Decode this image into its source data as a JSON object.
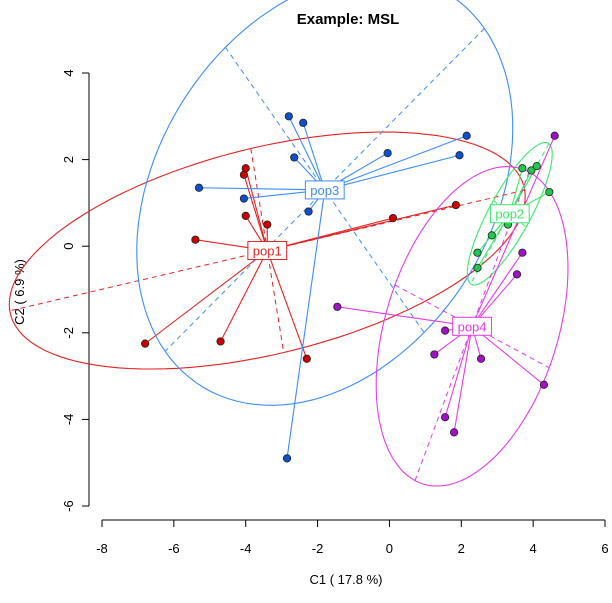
{
  "chart_data": {
    "type": "scatter",
    "title": "Example: MSL",
    "xlabel": "C1 ( 17.8 %)",
    "ylabel": "C2 ( 6.9 %)",
    "xlim": [
      -8,
      6
    ],
    "ylim": [
      -6,
      4
    ],
    "xticks": [
      "-8",
      "-6",
      "-4",
      "-2",
      "0",
      "2",
      "4",
      "6"
    ],
    "yticks": [
      "-6",
      "-4",
      "-2",
      "0",
      "2",
      "4"
    ],
    "grid": false,
    "series": [
      {
        "name": "pop1",
        "color": "#e52222",
        "point_fill": "#cc0000",
        "centroid": [
          -3.4,
          -0.1
        ],
        "ellipse": {
          "cx": -3.4,
          "cy": -0.1,
          "angle_deg": 11,
          "a": 7.3,
          "b": 2.4
        },
        "points": [
          [
            -6.8,
            -2.25
          ],
          [
            -5.4,
            0.15
          ],
          [
            -4.7,
            -2.2
          ],
          [
            -4.05,
            1.65
          ],
          [
            -4.0,
            1.8
          ],
          [
            -4.0,
            0.7
          ],
          [
            -3.4,
            0.5
          ],
          [
            -2.3,
            -2.6
          ],
          [
            0.1,
            0.65
          ],
          [
            1.85,
            0.95
          ]
        ]
      },
      {
        "name": "pop3",
        "color": "#3c8cff",
        "point_fill": "#0a50d0",
        "centroid": [
          -1.8,
          1.3
        ],
        "ellipse": {
          "cx": -1.8,
          "cy": 1.3,
          "angle_deg": 40,
          "a": 5.8,
          "b": 4.3
        },
        "points": [
          [
            -5.3,
            1.35
          ],
          [
            -4.05,
            1.1
          ],
          [
            -2.8,
            3.0
          ],
          [
            -2.65,
            2.05
          ],
          [
            -2.4,
            2.85
          ],
          [
            -2.25,
            0.8
          ],
          [
            -2.85,
            -4.9
          ],
          [
            -0.05,
            2.15
          ],
          [
            1.95,
            2.1
          ],
          [
            2.15,
            2.55
          ]
        ]
      },
      {
        "name": "pop2",
        "color": "#3ce86c",
        "point_fill": "#22c84c",
        "centroid": [
          3.35,
          0.75
        ],
        "ellipse": {
          "cx": 3.35,
          "cy": 0.75,
          "angle_deg": 56,
          "a": 1.95,
          "b": 0.55
        },
        "points": [
          [
            2.45,
            -0.15
          ],
          [
            2.45,
            -0.5
          ],
          [
            2.85,
            0.25
          ],
          [
            3.3,
            0.5
          ],
          [
            3.7,
            1.8
          ],
          [
            3.95,
            1.75
          ],
          [
            4.1,
            1.85
          ],
          [
            4.45,
            1.25
          ]
        ]
      },
      {
        "name": "pop4",
        "color": "#e53ce8",
        "point_fill": "#a010c8",
        "centroid": [
          2.3,
          -1.85
        ],
        "ellipse": {
          "cx": 2.3,
          "cy": -1.85,
          "angle_deg": 66,
          "a": 3.9,
          "b": 2.35
        },
        "points": [
          [
            -1.45,
            -1.4
          ],
          [
            1.25,
            -2.5
          ],
          [
            1.55,
            -1.95
          ],
          [
            1.55,
            -3.95
          ],
          [
            1.8,
            -4.3
          ],
          [
            2.55,
            -2.6
          ],
          [
            3.55,
            -0.65
          ],
          [
            3.7,
            -0.15
          ],
          [
            4.3,
            -3.2
          ],
          [
            4.6,
            2.55
          ]
        ]
      }
    ]
  }
}
